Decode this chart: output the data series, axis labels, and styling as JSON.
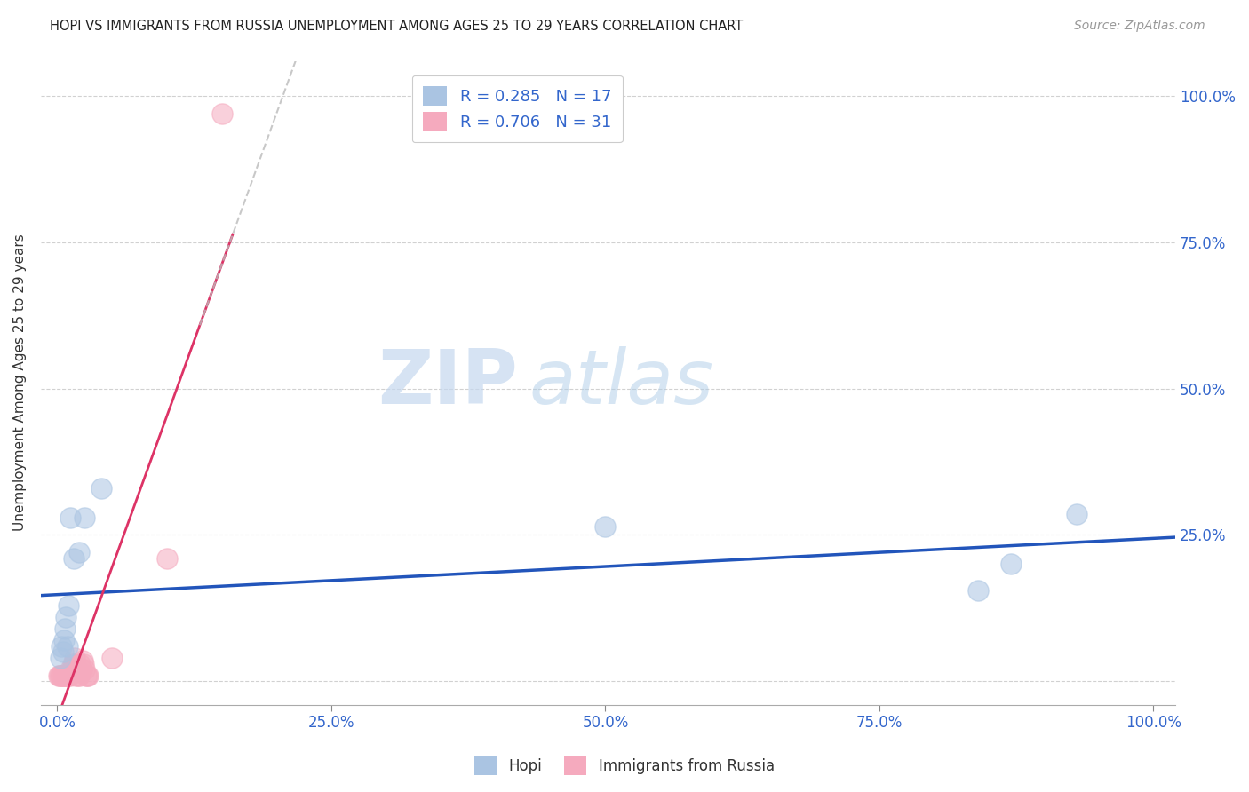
{
  "title": "HOPI VS IMMIGRANTS FROM RUSSIA UNEMPLOYMENT AMONG AGES 25 TO 29 YEARS CORRELATION CHART",
  "source": "Source: ZipAtlas.com",
  "ylabel": "Unemployment Among Ages 25 to 29 years",
  "watermark_zip": "ZIP",
  "watermark_atlas": "atlas",
  "hopi_R": 0.285,
  "hopi_N": 17,
  "russia_R": 0.706,
  "russia_N": 31,
  "hopi_color": "#aac4e2",
  "russia_color": "#f5aabe",
  "hopi_line_color": "#2255bb",
  "russia_line_color": "#dd3366",
  "legend_text_color": "#3366cc",
  "title_color": "#222222",
  "axis_label_color": "#3366cc",
  "background_color": "#ffffff",
  "grid_color": "#cccccc",
  "hopi_x": [
    0.003,
    0.004,
    0.005,
    0.006,
    0.007,
    0.008,
    0.009,
    0.01,
    0.012,
    0.015,
    0.02,
    0.025,
    0.04,
    0.5,
    0.84,
    0.87,
    0.93
  ],
  "hopi_y": [
    0.04,
    0.06,
    0.05,
    0.07,
    0.09,
    0.11,
    0.06,
    0.13,
    0.28,
    0.21,
    0.22,
    0.28,
    0.33,
    0.265,
    0.155,
    0.2,
    0.285
  ],
  "russia_x": [
    0.001,
    0.002,
    0.003,
    0.004,
    0.005,
    0.006,
    0.007,
    0.008,
    0.009,
    0.01,
    0.011,
    0.012,
    0.013,
    0.014,
    0.015,
    0.016,
    0.017,
    0.018,
    0.019,
    0.02,
    0.021,
    0.022,
    0.023,
    0.024,
    0.025,
    0.026,
    0.027,
    0.028,
    0.05,
    0.1,
    0.15
  ],
  "russia_y": [
    0.01,
    0.01,
    0.01,
    0.01,
    0.01,
    0.01,
    0.01,
    0.01,
    0.01,
    0.01,
    0.01,
    0.02,
    0.02,
    0.03,
    0.03,
    0.04,
    0.01,
    0.02,
    0.01,
    0.01,
    0.03,
    0.02,
    0.035,
    0.03,
    0.02,
    0.01,
    0.01,
    0.01,
    0.04,
    0.21,
    0.97
  ],
  "xlim": [
    -0.015,
    1.02
  ],
  "ylim": [
    -0.04,
    1.06
  ],
  "xticks": [
    0.0,
    0.25,
    0.5,
    0.75,
    1.0
  ],
  "yticks": [
    0.0,
    0.25,
    0.5,
    0.75,
    1.0
  ],
  "xticklabels": [
    "0.0%",
    "25.0%",
    "50.0%",
    "75.0%",
    "100.0%"
  ],
  "yticklabels_right": [
    "",
    "25.0%",
    "50.0%",
    "75.0%",
    "100.0%"
  ]
}
